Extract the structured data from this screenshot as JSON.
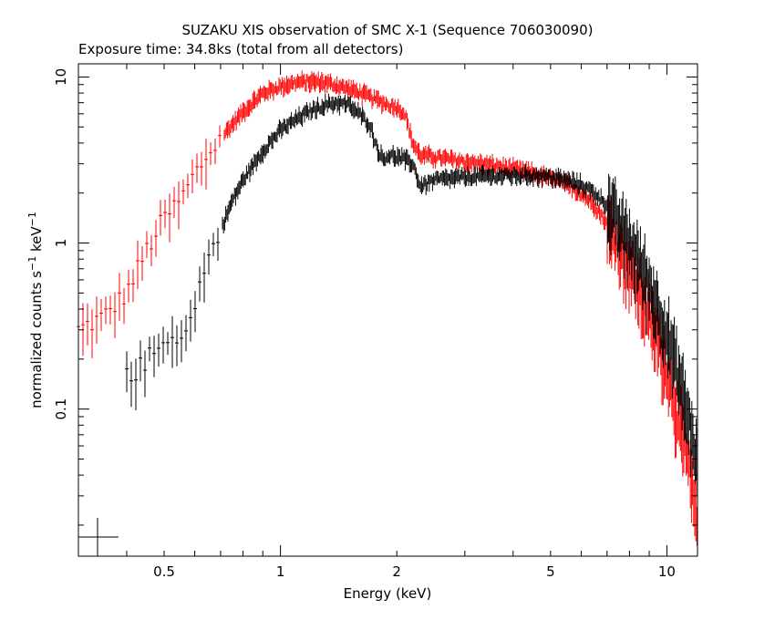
{
  "chart_data": {
    "type": "scatter",
    "title": "SUZAKU XIS observation of SMC X-1 (Sequence 706030090)",
    "subtitle": "Exposure time: 34.8ks (total from all detectors)",
    "xlabel": "Energy (keV)",
    "ylabel": "normalized counts s",
    "ylabel_sup1": "−1",
    "ylabel_mid": " keV",
    "ylabel_sup2": "−1",
    "x_scale": "log",
    "y_scale": "log",
    "xlim": [
      0.3,
      12
    ],
    "ylim": [
      0.013,
      12
    ],
    "x_ticks": [
      {
        "value": 0.5,
        "label": "0.5"
      },
      {
        "value": 1,
        "label": "1"
      },
      {
        "value": 2,
        "label": "2"
      },
      {
        "value": 5,
        "label": "5"
      },
      {
        "value": 10,
        "label": "10"
      }
    ],
    "y_ticks": [
      {
        "value": 0.1,
        "label": "0.1"
      },
      {
        "value": 1,
        "label": "1"
      },
      {
        "value": 10,
        "label": "10"
      }
    ],
    "series": [
      {
        "color": "#ff0000",
        "points": [
          [
            0.3,
            0.3
          ],
          [
            0.35,
            0.36
          ],
          [
            0.4,
            0.5
          ],
          [
            0.45,
            0.9
          ],
          [
            0.5,
            1.4
          ],
          [
            0.55,
            1.8
          ],
          [
            0.6,
            2.6
          ],
          [
            0.65,
            3.4
          ],
          [
            0.7,
            4.3
          ],
          [
            0.8,
            6.2
          ],
          [
            0.9,
            8.0
          ],
          [
            1.0,
            8.8
          ],
          [
            1.1,
            9.3
          ],
          [
            1.2,
            9.4
          ],
          [
            1.3,
            9.3
          ],
          [
            1.4,
            8.9
          ],
          [
            1.5,
            8.5
          ],
          [
            1.6,
            8.1
          ],
          [
            1.7,
            7.6
          ],
          [
            1.8,
            7.2
          ],
          [
            1.9,
            6.8
          ],
          [
            2.0,
            6.6
          ],
          [
            2.1,
            6.0
          ],
          [
            2.2,
            4.0
          ],
          [
            2.3,
            3.4
          ],
          [
            2.5,
            3.3
          ],
          [
            3.0,
            3.1
          ],
          [
            3.5,
            2.95
          ],
          [
            4.0,
            2.8
          ],
          [
            4.5,
            2.65
          ],
          [
            5.0,
            2.45
          ],
          [
            5.5,
            2.25
          ],
          [
            6.0,
            2.0
          ],
          [
            6.5,
            1.7
          ],
          [
            7.0,
            1.3
          ],
          [
            7.5,
            1.0
          ],
          [
            8.0,
            0.75
          ],
          [
            8.5,
            0.52
          ],
          [
            9.0,
            0.38
          ],
          [
            9.5,
            0.26
          ],
          [
            10.0,
            0.18
          ],
          [
            10.5,
            0.11
          ],
          [
            11.0,
            0.07
          ],
          [
            11.5,
            0.04
          ],
          [
            12.0,
            0.02
          ]
        ]
      },
      {
        "color": "#000000",
        "points": [
          [
            0.4,
            0.18
          ],
          [
            0.42,
            0.16
          ],
          [
            0.45,
            0.2
          ],
          [
            0.48,
            0.22
          ],
          [
            0.5,
            0.26
          ],
          [
            0.52,
            0.3
          ],
          [
            0.55,
            0.26
          ],
          [
            0.58,
            0.3
          ],
          [
            0.6,
            0.45
          ],
          [
            0.65,
            0.8
          ],
          [
            0.7,
            1.2
          ],
          [
            0.75,
            1.8
          ],
          [
            0.8,
            2.4
          ],
          [
            0.9,
            3.6
          ],
          [
            1.0,
            4.8
          ],
          [
            1.1,
            5.6
          ],
          [
            1.2,
            6.3
          ],
          [
            1.3,
            6.8
          ],
          [
            1.4,
            7.0
          ],
          [
            1.5,
            6.8
          ],
          [
            1.6,
            6.0
          ],
          [
            1.7,
            5.2
          ],
          [
            1.75,
            4.2
          ],
          [
            1.8,
            3.5
          ],
          [
            1.85,
            3.2
          ],
          [
            1.9,
            3.4
          ],
          [
            2.0,
            3.3
          ],
          [
            2.1,
            3.2
          ],
          [
            2.2,
            3.0
          ],
          [
            2.3,
            2.2
          ],
          [
            2.4,
            2.3
          ],
          [
            2.5,
            2.4
          ],
          [
            3.0,
            2.5
          ],
          [
            3.5,
            2.55
          ],
          [
            4.0,
            2.55
          ],
          [
            4.5,
            2.55
          ],
          [
            5.0,
            2.5
          ],
          [
            5.5,
            2.4
          ],
          [
            6.0,
            2.25
          ],
          [
            6.5,
            2.0
          ],
          [
            7.0,
            1.7
          ],
          [
            7.5,
            1.35
          ],
          [
            8.0,
            1.05
          ],
          [
            8.5,
            0.8
          ],
          [
            9.0,
            0.58
          ],
          [
            9.5,
            0.42
          ],
          [
            10.0,
            0.3
          ],
          [
            10.5,
            0.2
          ],
          [
            11.0,
            0.13
          ],
          [
            11.5,
            0.08
          ],
          [
            12.0,
            0.05
          ]
        ]
      }
    ]
  }
}
